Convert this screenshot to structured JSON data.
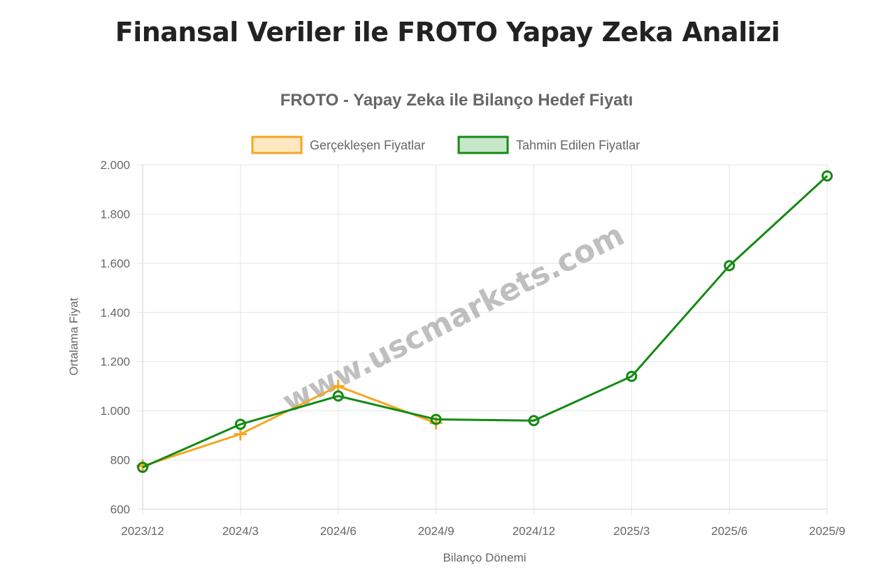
{
  "page": {
    "title": "Finansal Veriler ile FROTO Yapay Zeka Analizi",
    "watermark": "www.uscmarkets.com"
  },
  "chart_data": {
    "type": "line",
    "title": "FROTO - Yapay Zeka ile Bilanço Hedef Fiyatı",
    "xlabel": "Bilanço Dönemi",
    "ylabel": "Ortalama Fiyat",
    "categories": [
      "2023/12",
      "2024/3",
      "2024/6",
      "2024/9",
      "2024/12",
      "2025/3",
      "2025/6",
      "2025/9"
    ],
    "ylim": [
      600,
      2000
    ],
    "yticks": [
      600,
      800,
      1000,
      1200,
      1400,
      1600,
      1800,
      2000
    ],
    "ytick_labels": [
      "600",
      "800",
      "1.000",
      "1.200",
      "1.400",
      "1.600",
      "1.800",
      "2.000"
    ],
    "grid": true,
    "legend_position": "top",
    "series": [
      {
        "name": "Gerçekleşen Fiyatlar",
        "color": "#f5a623",
        "fill": "#fde8c2",
        "marker": "cross",
        "values": [
          775,
          905,
          1100,
          950,
          null,
          null,
          null,
          null
        ]
      },
      {
        "name": "Tahmin Edilen Fiyatlar",
        "color": "#138a13",
        "fill": "#c8e6c9",
        "marker": "circle",
        "values": [
          770,
          945,
          1060,
          965,
          960,
          1140,
          1590,
          1955
        ]
      }
    ]
  }
}
